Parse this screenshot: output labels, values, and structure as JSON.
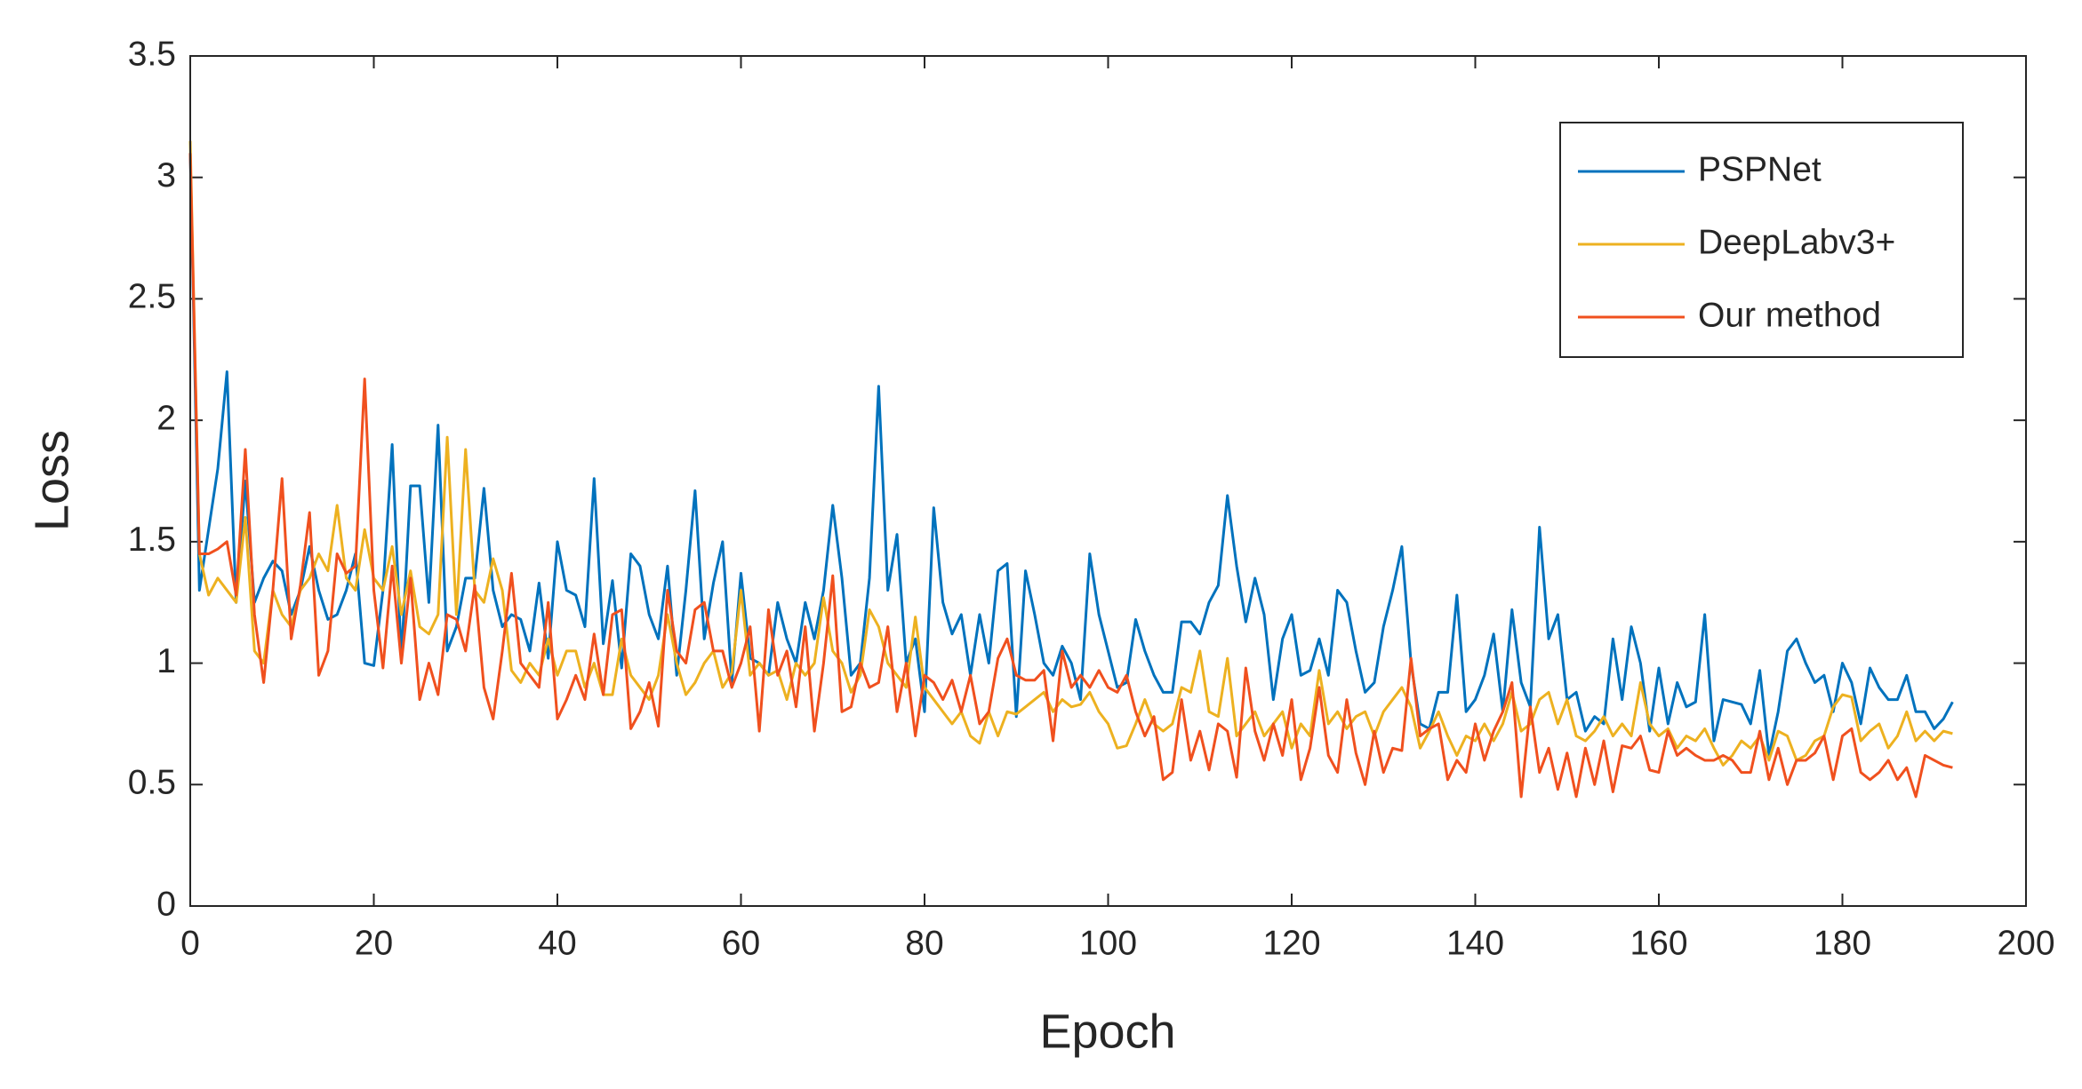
{
  "chart_data": {
    "type": "line",
    "xlabel": "Epoch",
    "ylabel": "Loss",
    "x": [
      0,
      1,
      2,
      3,
      4,
      5,
      6,
      7,
      8,
      9,
      10,
      11,
      12,
      13,
      14,
      15,
      16,
      17,
      18,
      19,
      20,
      21,
      22,
      23,
      24,
      25,
      26,
      27,
      28,
      29,
      30,
      31,
      32,
      33,
      34,
      35,
      36,
      37,
      38,
      39,
      40,
      41,
      42,
      43,
      44,
      45,
      46,
      47,
      48,
      49,
      50,
      51,
      52,
      53,
      54,
      55,
      56,
      57,
      58,
      59,
      60,
      61,
      62,
      63,
      64,
      65,
      66,
      67,
      68,
      69,
      70,
      71,
      72,
      73,
      74,
      75,
      76,
      77,
      78,
      79,
      80,
      81,
      82,
      83,
      84,
      85,
      86,
      87,
      88,
      89,
      90,
      91,
      92,
      93,
      94,
      95,
      96,
      97,
      98,
      99,
      100,
      101,
      102,
      103,
      104,
      105,
      106,
      107,
      108,
      109,
      110,
      111,
      112,
      113,
      114,
      115,
      116,
      117,
      118,
      119,
      120,
      121,
      122,
      123,
      124,
      125,
      126,
      127,
      128,
      129,
      130,
      131,
      132,
      133,
      134,
      135,
      136,
      137,
      138,
      139,
      140,
      141,
      142,
      143,
      144,
      145,
      146,
      147,
      148,
      149,
      150,
      151,
      152,
      153,
      154,
      155,
      156,
      157,
      158,
      159,
      160,
      161,
      162,
      163,
      164,
      165,
      166,
      167,
      168,
      169,
      170,
      171,
      172,
      173,
      174,
      175,
      176,
      177,
      178,
      179,
      180,
      181,
      182,
      183,
      184,
      185,
      186,
      187,
      188,
      189,
      190,
      191,
      192
    ],
    "series": [
      {
        "name": "PSPNet",
        "color": "#0072bd",
        "values": [
          3.1,
          1.3,
          1.55,
          1.8,
          2.2,
          1.25,
          1.75,
          1.25,
          1.35,
          1.42,
          1.38,
          1.2,
          1.3,
          1.48,
          1.3,
          1.18,
          1.2,
          1.3,
          1.45,
          1.0,
          0.99,
          1.3,
          1.9,
          1.02,
          1.73,
          1.73,
          1.25,
          1.98,
          1.05,
          1.15,
          1.35,
          1.35,
          1.72,
          1.3,
          1.15,
          1.2,
          1.18,
          1.05,
          1.33,
          1.02,
          1.5,
          1.3,
          1.28,
          1.15,
          1.76,
          1.08,
          1.34,
          0.98,
          1.45,
          1.4,
          1.2,
          1.1,
          1.4,
          0.95,
          1.3,
          1.71,
          1.1,
          1.33,
          1.5,
          0.92,
          1.37,
          1.02,
          1.0,
          0.95,
          1.25,
          1.1,
          1.0,
          1.25,
          1.1,
          1.3,
          1.65,
          1.35,
          0.95,
          1.0,
          1.35,
          2.14,
          1.3,
          1.53,
          1.0,
          1.1,
          0.8,
          1.64,
          1.25,
          1.12,
          1.2,
          0.95,
          1.2,
          1.0,
          1.38,
          1.41,
          0.78,
          1.38,
          1.2,
          1.0,
          0.95,
          1.07,
          1.0,
          0.85,
          1.45,
          1.2,
          1.05,
          0.9,
          0.92,
          1.18,
          1.05,
          0.95,
          0.88,
          0.88,
          1.17,
          1.17,
          1.12,
          1.25,
          1.32,
          1.69,
          1.4,
          1.17,
          1.35,
          1.2,
          0.85,
          1.1,
          1.2,
          0.95,
          0.97,
          1.1,
          0.95,
          1.3,
          1.25,
          1.05,
          0.88,
          0.92,
          1.15,
          1.3,
          1.48,
          1.0,
          0.75,
          0.73,
          0.88,
          0.88,
          1.28,
          0.8,
          0.85,
          0.95,
          1.12,
          0.8,
          1.22,
          0.92,
          0.82,
          1.56,
          1.1,
          1.2,
          0.85,
          0.88,
          0.72,
          0.78,
          0.75,
          1.1,
          0.85,
          1.15,
          1.0,
          0.72,
          0.98,
          0.75,
          0.92,
          0.82,
          0.84,
          1.2,
          0.68,
          0.85,
          0.84,
          0.83,
          0.75,
          0.97,
          0.62,
          0.8,
          1.05,
          1.1,
          1.0,
          0.92,
          0.95,
          0.8,
          1.0,
          0.92,
          0.75,
          0.98,
          0.9,
          0.85,
          0.85,
          0.95,
          0.8,
          0.8,
          0.73,
          0.77,
          0.84
        ]
      },
      {
        "name": "DeepLabv3+",
        "color": "#edb120",
        "values": [
          3.15,
          1.45,
          1.28,
          1.35,
          1.3,
          1.25,
          1.6,
          1.05,
          1.0,
          1.3,
          1.2,
          1.15,
          1.3,
          1.35,
          1.45,
          1.38,
          1.65,
          1.35,
          1.3,
          1.55,
          1.35,
          1.3,
          1.48,
          1.2,
          1.38,
          1.15,
          1.12,
          1.2,
          1.93,
          1.2,
          1.88,
          1.3,
          1.25,
          1.43,
          1.3,
          0.97,
          0.92,
          1.0,
          0.95,
          1.1,
          0.95,
          1.05,
          1.05,
          0.9,
          1.0,
          0.87,
          0.87,
          1.1,
          0.95,
          0.9,
          0.85,
          0.95,
          1.2,
          1.0,
          0.87,
          0.92,
          1.0,
          1.05,
          0.9,
          0.96,
          1.3,
          0.95,
          1.0,
          0.95,
          0.97,
          0.85,
          1.0,
          0.95,
          1.0,
          1.27,
          1.05,
          1.0,
          0.88,
          0.95,
          1.22,
          1.15,
          1.0,
          0.95,
          0.9,
          1.19,
          0.9,
          0.85,
          0.8,
          0.75,
          0.8,
          0.7,
          0.67,
          0.8,
          0.7,
          0.8,
          0.79,
          0.82,
          0.85,
          0.88,
          0.8,
          0.85,
          0.82,
          0.83,
          0.88,
          0.8,
          0.75,
          0.65,
          0.66,
          0.75,
          0.85,
          0.75,
          0.72,
          0.75,
          0.9,
          0.88,
          1.05,
          0.8,
          0.78,
          1.02,
          0.7,
          0.75,
          0.8,
          0.7,
          0.75,
          0.8,
          0.65,
          0.75,
          0.7,
          0.97,
          0.75,
          0.8,
          0.73,
          0.78,
          0.8,
          0.7,
          0.8,
          0.85,
          0.9,
          0.82,
          0.65,
          0.72,
          0.8,
          0.7,
          0.62,
          0.7,
          0.68,
          0.75,
          0.68,
          0.75,
          0.88,
          0.72,
          0.75,
          0.85,
          0.88,
          0.75,
          0.85,
          0.7,
          0.68,
          0.72,
          0.78,
          0.7,
          0.75,
          0.7,
          0.92,
          0.75,
          0.7,
          0.73,
          0.65,
          0.7,
          0.68,
          0.73,
          0.65,
          0.58,
          0.62,
          0.68,
          0.65,
          0.7,
          0.6,
          0.72,
          0.7,
          0.6,
          0.62,
          0.68,
          0.7,
          0.82,
          0.87,
          0.86,
          0.68,
          0.72,
          0.75,
          0.65,
          0.7,
          0.8,
          0.68,
          0.72,
          0.68,
          0.72,
          0.71
        ]
      },
      {
        "name": "Our method",
        "color": "#f0501e",
        "values": [
          3.1,
          1.45,
          1.45,
          1.47,
          1.5,
          1.28,
          1.88,
          1.2,
          0.92,
          1.3,
          1.76,
          1.1,
          1.32,
          1.62,
          0.95,
          1.05,
          1.45,
          1.37,
          1.4,
          2.17,
          1.3,
          0.98,
          1.4,
          1.0,
          1.35,
          0.85,
          1.0,
          0.87,
          1.2,
          1.18,
          1.05,
          1.32,
          0.9,
          0.77,
          1.05,
          1.37,
          1.0,
          0.95,
          0.9,
          1.25,
          0.77,
          0.85,
          0.95,
          0.85,
          1.12,
          0.87,
          1.2,
          1.22,
          0.73,
          0.8,
          0.92,
          0.74,
          1.3,
          1.05,
          1.0,
          1.22,
          1.25,
          1.05,
          1.05,
          0.9,
          1.0,
          1.15,
          0.72,
          1.22,
          0.95,
          1.05,
          0.82,
          1.15,
          0.72,
          1.0,
          1.36,
          0.8,
          0.82,
          1.0,
          0.9,
          0.92,
          1.15,
          0.8,
          1.0,
          0.7,
          0.95,
          0.92,
          0.85,
          0.93,
          0.8,
          0.95,
          0.75,
          0.8,
          1.02,
          1.1,
          0.95,
          0.93,
          0.93,
          0.97,
          0.68,
          1.05,
          0.9,
          0.95,
          0.9,
          0.97,
          0.9,
          0.88,
          0.95,
          0.8,
          0.7,
          0.78,
          0.52,
          0.55,
          0.85,
          0.6,
          0.72,
          0.56,
          0.75,
          0.72,
          0.53,
          0.98,
          0.72,
          0.6,
          0.75,
          0.62,
          0.85,
          0.52,
          0.65,
          0.9,
          0.62,
          0.55,
          0.85,
          0.63,
          0.5,
          0.72,
          0.55,
          0.65,
          0.64,
          1.02,
          0.7,
          0.73,
          0.75,
          0.52,
          0.6,
          0.55,
          0.75,
          0.6,
          0.72,
          0.8,
          0.92,
          0.45,
          0.82,
          0.55,
          0.65,
          0.48,
          0.63,
          0.45,
          0.65,
          0.5,
          0.68,
          0.47,
          0.66,
          0.65,
          0.7,
          0.56,
          0.55,
          0.72,
          0.62,
          0.65,
          0.62,
          0.6,
          0.6,
          0.62,
          0.6,
          0.55,
          0.55,
          0.72,
          0.52,
          0.65,
          0.5,
          0.6,
          0.6,
          0.63,
          0.7,
          0.52,
          0.7,
          0.73,
          0.55,
          0.52,
          0.55,
          0.6,
          0.52,
          0.57,
          0.45,
          0.62,
          0.6,
          0.58,
          0.57
        ]
      }
    ],
    "xlim": [
      0,
      200
    ],
    "xticks": [
      0,
      20,
      40,
      60,
      80,
      100,
      120,
      140,
      160,
      180,
      200
    ],
    "ylim": [
      0,
      3.5
    ],
    "yticks": [
      0,
      0.5,
      1,
      1.5,
      2,
      2.5,
      3,
      3.5
    ],
    "grid": false,
    "legend": "upper right"
  }
}
